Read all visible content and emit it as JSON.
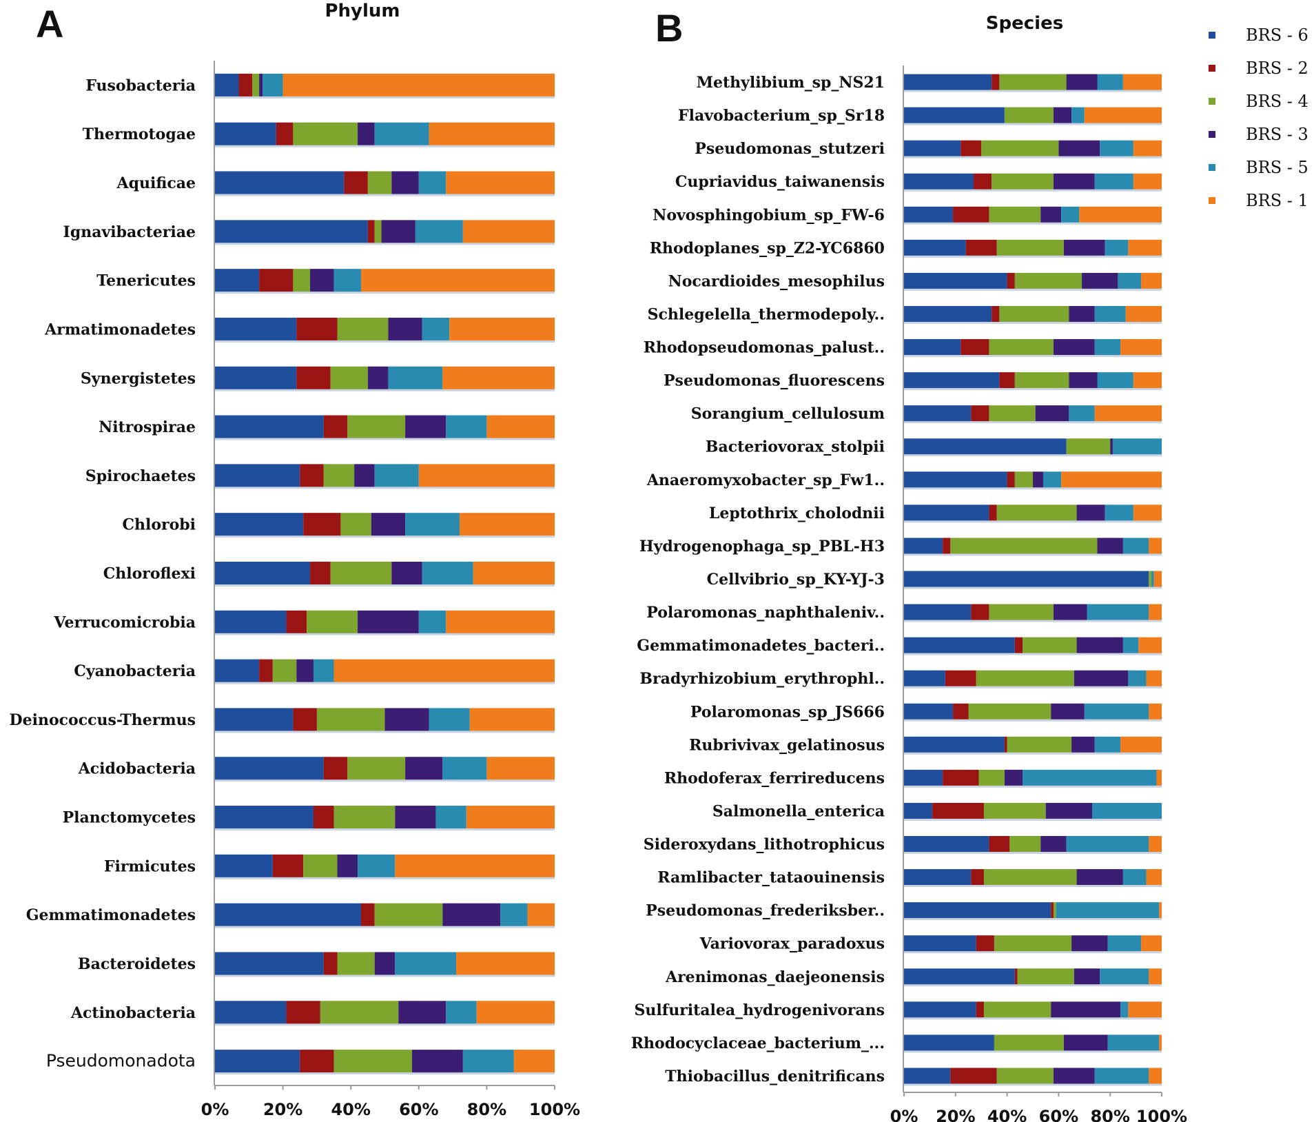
{
  "legend": [
    {
      "label": "BRS - 6",
      "color": "#1f4e9c"
    },
    {
      "label": "BRS - 2",
      "color": "#9b1414"
    },
    {
      "label": "BRS - 4",
      "color": "#7ea52e"
    },
    {
      "label": "BRS - 3",
      "color": "#3b1d73"
    },
    {
      "label": "BRS - 5",
      "color": "#2a8bb0"
    },
    {
      "label": "BRS - 1",
      "color": "#f07c1c"
    }
  ],
  "chart_data": [
    {
      "panel": "A",
      "type": "bar",
      "orientation": "horizontal",
      "stacked": true,
      "percent": true,
      "title": "Phylum",
      "xlim": [
        0,
        100
      ],
      "xticks": [
        "0%",
        "20%",
        "40%",
        "60%",
        "80%",
        "100%"
      ],
      "categories": [
        "Fusobacteria",
        "Thermotogae",
        "Aquificae",
        "Ignavibacteriae",
        "Tenericutes",
        "Armatimonadetes",
        "Synergistetes",
        "Nitrospirae",
        "Spirochaetes",
        "Chlorobi",
        "Chloroflexi",
        "Verrucomicrobia",
        "Cyanobacteria",
        "Deinococcus-Thermus",
        "Acidobacteria",
        "Planctomycetes",
        "Firmicutes",
        "Gemmatimonadetes",
        "Bacteroidetes",
        "Actinobacteria",
        "Pseudomonadota"
      ],
      "series": [
        {
          "name": "BRS - 6",
          "values": [
            7,
            18,
            38,
            45,
            13,
            24,
            24,
            32,
            25,
            26,
            28,
            21,
            13,
            23,
            32,
            29,
            17,
            43,
            32,
            21,
            25
          ]
        },
        {
          "name": "BRS - 2",
          "values": [
            4,
            5,
            7,
            2,
            10,
            12,
            10,
            7,
            7,
            11,
            6,
            6,
            4,
            7,
            7,
            6,
            9,
            4,
            4,
            10,
            10
          ]
        },
        {
          "name": "BRS - 4",
          "values": [
            2,
            19,
            7,
            2,
            5,
            15,
            11,
            17,
            9,
            9,
            18,
            15,
            7,
            20,
            17,
            18,
            10,
            20,
            11,
            23,
            23
          ]
        },
        {
          "name": "BRS - 3",
          "values": [
            1,
            5,
            8,
            10,
            7,
            10,
            6,
            12,
            6,
            10,
            9,
            18,
            5,
            13,
            11,
            12,
            6,
            17,
            6,
            14,
            15
          ]
        },
        {
          "name": "BRS - 5",
          "values": [
            6,
            16,
            8,
            14,
            8,
            8,
            16,
            12,
            13,
            16,
            15,
            8,
            6,
            12,
            13,
            9,
            11,
            8,
            18,
            9,
            15
          ]
        },
        {
          "name": "BRS - 1",
          "values": [
            80,
            37,
            32,
            27,
            57,
            31,
            33,
            20,
            40,
            28,
            24,
            32,
            65,
            25,
            20,
            26,
            47,
            8,
            29,
            23,
            12
          ]
        }
      ]
    },
    {
      "panel": "B",
      "type": "bar",
      "orientation": "horizontal",
      "stacked": true,
      "percent": true,
      "title": "Species",
      "xlim": [
        0,
        100
      ],
      "xticks": [
        "0%",
        "20%",
        "40%",
        "60%",
        "80%",
        "100%"
      ],
      "categories": [
        "Methylibium_sp_NS21",
        "Flavobacterium_sp_Sr18",
        "Pseudomonas_stutzeri",
        "Cupriavidus_taiwanensis",
        "Novosphingobium_sp_FW-6",
        "Rhodoplanes_sp_Z2-YC6860",
        "Nocardioides_mesophilus",
        "Schlegelella_thermodepoly..",
        "Rhodopseudomonas_palust..",
        "Pseudomonas_fluorescens",
        "Sorangium_cellulosum",
        "Bacteriovorax_stolpii",
        "Anaeromyxobacter_sp_Fw1..",
        "Leptothrix_cholodnii",
        "Hydrogenophaga_sp_PBL-H3",
        "Cellvibrio_sp_KY-YJ-3",
        "Polaromonas_naphthaleniv..",
        "Gemmatimonadetes_bacteri..",
        "Bradyrhizobium_erythrophl..",
        "Polaromonas_sp_JS666",
        "Rubrivivax_gelatinosus",
        "Rhodoferax_ferrireducens",
        "Salmonella_enterica",
        "Sideroxydans_lithotrophicus",
        "Ramlibacter_tataouinensis",
        "Pseudomonas_frederiksber..",
        "Variovorax_paradoxus",
        "Arenimonas_daejeonensis",
        "Sulfuritalea_hydrogenivorans",
        "Rhodocyclaceae_bacterium_...",
        "Thiobacillus_denitrificans"
      ],
      "series": [
        {
          "name": "BRS - 6",
          "values": [
            34,
            39,
            22,
            27,
            19,
            24,
            40,
            34,
            22,
            37,
            26,
            63,
            40,
            33,
            15,
            95,
            26,
            43,
            16,
            19,
            39,
            15,
            11,
            33,
            26,
            57,
            28,
            43,
            28,
            35,
            18
          ]
        },
        {
          "name": "BRS - 2",
          "values": [
            3,
            0,
            8,
            7,
            14,
            12,
            3,
            3,
            11,
            6,
            7,
            0,
            3,
            3,
            3,
            0,
            7,
            3,
            12,
            6,
            1,
            14,
            20,
            8,
            5,
            1,
            7,
            1,
            3,
            0,
            18
          ]
        },
        {
          "name": "BRS - 4",
          "values": [
            26,
            19,
            30,
            24,
            20,
            26,
            26,
            27,
            25,
            21,
            18,
            17,
            7,
            31,
            57,
            1,
            25,
            21,
            38,
            32,
            25,
            10,
            24,
            12,
            36,
            1,
            30,
            22,
            26,
            27,
            22
          ]
        },
        {
          "name": "BRS - 3",
          "values": [
            12,
            7,
            16,
            16,
            8,
            16,
            14,
            10,
            16,
            11,
            13,
            1,
            4,
            11,
            10,
            0,
            13,
            18,
            21,
            13,
            9,
            7,
            18,
            10,
            18,
            0,
            14,
            10,
            27,
            17,
            16
          ]
        },
        {
          "name": "BRS - 5",
          "values": [
            10,
            5,
            13,
            15,
            7,
            9,
            9,
            12,
            10,
            14,
            10,
            19,
            7,
            11,
            10,
            1,
            24,
            6,
            7,
            25,
            10,
            52,
            27,
            32,
            9,
            40,
            13,
            19,
            3,
            20,
            21
          ]
        },
        {
          "name": "BRS - 1",
          "values": [
            15,
            30,
            11,
            11,
            32,
            13,
            8,
            14,
            16,
            11,
            26,
            0,
            39,
            11,
            5,
            3,
            5,
            9,
            6,
            5,
            16,
            2,
            0,
            5,
            6,
            1,
            8,
            5,
            13,
            1,
            5
          ]
        }
      ]
    }
  ]
}
